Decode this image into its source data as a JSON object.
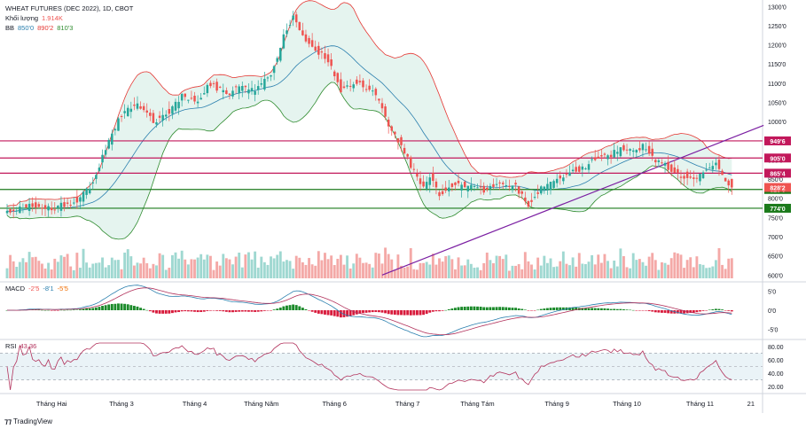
{
  "header": {
    "symbol": "WHEAT FUTURES (DEC 2022), 1D, CBOT",
    "volume_label": "Khối lượng",
    "volume_value": "1.914K",
    "bb_label": "BB",
    "bb_values": [
      "850'0",
      "890'2",
      "810'3"
    ],
    "macd_label": "MACD",
    "macd_values": [
      "-2'5",
      "-8'1",
      "-5'5"
    ],
    "rsi_label": "RSI",
    "rsi_value": "43.36"
  },
  "brand": "TradingView",
  "colors": {
    "up": "#26a69a",
    "down": "#ef5350",
    "level_line": "#c2185b",
    "support_line": "#1b7a1b",
    "trendline": "#7b1fa2",
    "bb_fill": "#e0f2ec",
    "bb_upper": "#e53935",
    "bb_lower": "#2e8b2e",
    "bb_basis": "#2a7fae",
    "rsi_line": "#b2325c",
    "rsi_band": "#eaf3f7"
  },
  "chart_data": {
    "type": "candlestick",
    "x_ticks": [
      {
        "label": "Tháng Hai",
        "i": 14
      },
      {
        "label": "Tháng 3",
        "i": 36
      },
      {
        "label": "Tháng 4",
        "i": 59
      },
      {
        "label": "Tháng Năm",
        "i": 80
      },
      {
        "label": "Tháng 6",
        "i": 103
      },
      {
        "label": "Tháng 7",
        "i": 126
      },
      {
        "label": "Tháng Tám",
        "i": 148
      },
      {
        "label": "Tháng 9",
        "i": 173
      },
      {
        "label": "Tháng 10",
        "i": 195
      },
      {
        "label": "Tháng 11",
        "i": 218
      },
      {
        "label": "21",
        "i": 234
      }
    ],
    "price_axis": {
      "ticks": [
        "6000",
        "6500",
        "7000",
        "7500",
        "8000",
        "8500",
        "9000",
        "9500",
        "10000",
        "10500",
        "11000",
        "11500",
        "12000",
        "12500",
        "13000"
      ],
      "labels": [
        "600'0",
        "650'0",
        "700'0",
        "750'0",
        "800'0",
        "850'0",
        "900'0",
        "950'0",
        "1000'0",
        "1050'0",
        "1100'0",
        "1150'0",
        "1200'0",
        "1250'0",
        "1300'0"
      ]
    },
    "price_range": [
      5960,
      13030
    ],
    "levels": [
      {
        "value": 9496,
        "label": "949'6",
        "kind": "resistance"
      },
      {
        "value": 9050,
        "label": "905'0",
        "kind": "resistance"
      },
      {
        "value": 8654,
        "label": "865'4",
        "kind": "resistance"
      },
      {
        "value": 8230,
        "label": "823'0",
        "kind": "support"
      },
      {
        "value": 7740,
        "label": "774'0",
        "kind": "support"
      }
    ],
    "last_price": {
      "value": 8282,
      "label": "828'2"
    },
    "trendline": {
      "from": [
        118,
        6000
      ],
      "to": [
        238,
        9900
      ]
    },
    "anchors": [
      [
        0,
        7650
      ],
      [
        7,
        7800
      ],
      [
        15,
        7750
      ],
      [
        22,
        7950
      ],
      [
        27,
        8400
      ],
      [
        31,
        9300
      ],
      [
        36,
        10200
      ],
      [
        41,
        10500
      ],
      [
        46,
        10000
      ],
      [
        51,
        10250
      ],
      [
        55,
        10700
      ],
      [
        60,
        10550
      ],
      [
        64,
        11000
      ],
      [
        69,
        10700
      ],
      [
        73,
        10900
      ],
      [
        78,
        10800
      ],
      [
        83,
        11200
      ],
      [
        87,
        12200
      ],
      [
        90,
        12750
      ],
      [
        94,
        12100
      ],
      [
        98,
        11800
      ],
      [
        101,
        11600
      ],
      [
        105,
        10800
      ],
      [
        109,
        11000
      ],
      [
        113,
        10900
      ],
      [
        116,
        10700
      ],
      [
        119,
        10100
      ],
      [
        122,
        9600
      ],
      [
        125,
        9200
      ],
      [
        128,
        8700
      ],
      [
        131,
        8300
      ],
      [
        133,
        8600
      ],
      [
        136,
        8100
      ],
      [
        140,
        8350
      ],
      [
        145,
        8300
      ],
      [
        150,
        8200
      ],
      [
        155,
        8400
      ],
      [
        160,
        8300
      ],
      [
        164,
        7850
      ],
      [
        168,
        8250
      ],
      [
        172,
        8400
      ],
      [
        176,
        8650
      ],
      [
        180,
        8750
      ],
      [
        185,
        9000
      ],
      [
        190,
        9150
      ],
      [
        194,
        9300
      ],
      [
        197,
        9250
      ],
      [
        200,
        9350
      ],
      [
        204,
        9000
      ],
      [
        208,
        8800
      ],
      [
        212,
        8600
      ],
      [
        216,
        8500
      ],
      [
        220,
        8700
      ],
      [
        223,
        8900
      ],
      [
        226,
        8500
      ],
      [
        228,
        8282
      ]
    ],
    "macd": {
      "range": [
        -6.5,
        6.5
      ],
      "ticks": [
        "-5'0",
        "0'0",
        "5'0"
      ],
      "tick_values": [
        -5,
        0,
        5
      ]
    },
    "rsi": {
      "range": [
        15,
        85
      ],
      "ticks": [
        "20.00",
        "40.00",
        "60.00",
        "80.00"
      ],
      "tick_values": [
        20,
        40,
        60,
        80
      ],
      "band": [
        30,
        70
      ]
    },
    "volume": {
      "range": [
        0,
        7200
      ],
      "ticks": [
        "600'0",
        "650'0",
        "700'0"
      ]
    }
  }
}
